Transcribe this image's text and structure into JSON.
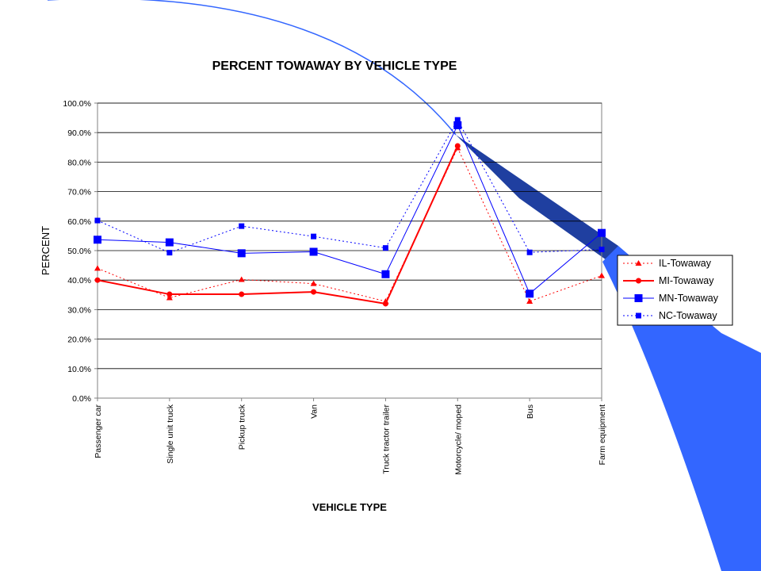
{
  "chart_data": {
    "type": "line",
    "title": "PERCENT TOWAWAY BY VEHICLE TYPE",
    "xlabel": "VEHICLE TYPE",
    "ylabel": "PERCENT",
    "categories": [
      "Passenger car",
      "Single unit truck",
      "Pickup truck",
      "Van",
      "Truck tractor trailer",
      "Motorcycle/ moped",
      "Bus",
      "Farm equipment"
    ],
    "yticks": [
      "0.0%",
      "10.0%",
      "20.0%",
      "30.0%",
      "40.0%",
      "50.0%",
      "60.0%",
      "70.0%",
      "80.0%",
      "90.0%",
      "100.0%"
    ],
    "ylim": [
      0,
      100
    ],
    "grid": true,
    "legend_position": "right",
    "series": [
      {
        "name": "IL-Towaway",
        "values": [
          44.0,
          34.0,
          40.2,
          38.8,
          32.8,
          84.8,
          32.8,
          41.5
        ],
        "color": "#ff0000",
        "style": "dotted",
        "marker": "triangle"
      },
      {
        "name": "MI-Towaway",
        "values": [
          40.0,
          35.2,
          35.2,
          36.0,
          32.0,
          85.5,
          null,
          null
        ],
        "color": "#ff0000",
        "style": "solid",
        "marker": "circle"
      },
      {
        "name": "MN-Towaway",
        "values": [
          53.7,
          52.8,
          49.1,
          49.6,
          42.0,
          92.5,
          35.4,
          56.0
        ],
        "color": "#0000ff",
        "style": "solid",
        "marker": "square"
      },
      {
        "name": "NC-Towaway",
        "values": [
          60.2,
          49.3,
          58.3,
          54.8,
          50.9,
          94.3,
          49.4,
          50.4
        ],
        "color": "#0000ff",
        "style": "dotted",
        "marker": "small-square"
      }
    ]
  }
}
